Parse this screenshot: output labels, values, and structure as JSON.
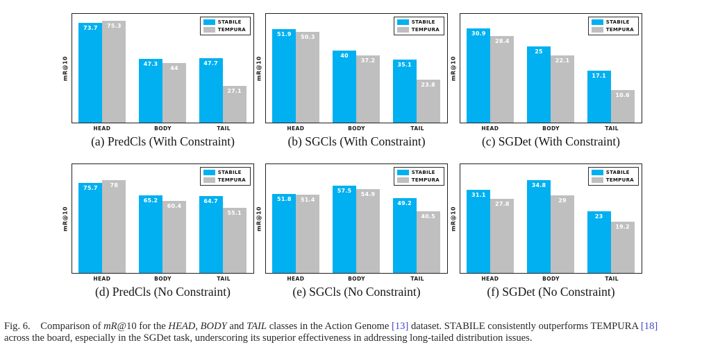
{
  "figure": {
    "ylabel": "mR@10",
    "categories": [
      "HEAD",
      "BODY",
      "TAIL"
    ],
    "series_colors": {
      "STABILE": "#00B0F0",
      "TEMPURA": "#BFBFBF"
    },
    "legend": {
      "position": "top-right",
      "items": [
        "STABILE",
        "TEMPURA"
      ]
    }
  },
  "chart_data": [
    {
      "type": "bar",
      "title": "(a) PredCls (With Constraint)",
      "categories": [
        "HEAD",
        "BODY",
        "TAIL"
      ],
      "series": [
        {
          "name": "STABILE",
          "values": [
            73.7,
            47.3,
            47.7
          ]
        },
        {
          "name": "TEMPURA",
          "values": [
            75.3,
            44,
            27.1
          ]
        }
      ],
      "xlabel": "",
      "ylabel": "mR@10",
      "ylim": [
        0,
        80
      ],
      "grid": false,
      "legend_position": "top-right"
    },
    {
      "type": "bar",
      "title": "(b) SGCls (With Constraint)",
      "categories": [
        "HEAD",
        "BODY",
        "TAIL"
      ],
      "series": [
        {
          "name": "STABILE",
          "values": [
            51.9,
            40,
            35.1
          ]
        },
        {
          "name": "TEMPURA",
          "values": [
            50.3,
            37.2,
            23.8
          ]
        }
      ],
      "xlabel": "",
      "ylabel": "mR@10",
      "ylim": [
        0,
        60
      ],
      "grid": false,
      "legend_position": "top-right"
    },
    {
      "type": "bar",
      "title": "(c) SGDet (With Constraint)",
      "categories": [
        "HEAD",
        "BODY",
        "TAIL"
      ],
      "series": [
        {
          "name": "STABILE",
          "values": [
            30.9,
            25,
            17.1
          ]
        },
        {
          "name": "TEMPURA",
          "values": [
            28.4,
            22.1,
            10.6
          ]
        }
      ],
      "xlabel": "",
      "ylabel": "mR@10",
      "ylim": [
        0,
        35.5
      ],
      "grid": false,
      "legend_position": "top-right"
    },
    {
      "type": "bar",
      "title": "(d) PredCls (No Constraint)",
      "categories": [
        "HEAD",
        "BODY",
        "TAIL"
      ],
      "series": [
        {
          "name": "STABILE",
          "values": [
            75.7,
            65.2,
            64.7
          ]
        },
        {
          "name": "TEMPURA",
          "values": [
            78,
            60.4,
            55.1
          ]
        }
      ],
      "xlabel": "",
      "ylabel": "mR@10",
      "ylim": [
        0,
        91
      ],
      "grid": false,
      "legend_position": "top-right"
    },
    {
      "type": "bar",
      "title": "(e) SGCls (No Constraint)",
      "categories": [
        "HEAD",
        "BODY",
        "TAIL"
      ],
      "series": [
        {
          "name": "STABILE",
          "values": [
            51.8,
            57.5,
            49.2
          ]
        },
        {
          "name": "TEMPURA",
          "values": [
            51.4,
            54.9,
            40.5
          ]
        }
      ],
      "xlabel": "",
      "ylabel": "mR@10",
      "ylim": [
        0,
        71
      ],
      "grid": false,
      "legend_position": "top-right"
    },
    {
      "type": "bar",
      "title": "(f) SGDet (No Constraint)",
      "categories": [
        "HEAD",
        "BODY",
        "TAIL"
      ],
      "series": [
        {
          "name": "STABILE",
          "values": [
            31.1,
            34.8,
            23
          ]
        },
        {
          "name": "TEMPURA",
          "values": [
            27.8,
            29,
            19.2
          ]
        }
      ],
      "xlabel": "",
      "ylabel": "mR@10",
      "ylim": [
        0,
        40.5
      ],
      "grid": false,
      "legend_position": "top-right"
    }
  ],
  "caption": {
    "segments": [
      {
        "text": "Fig. 6.  Comparison of ",
        "style": "plain"
      },
      {
        "text": "mR",
        "style": "italic"
      },
      {
        "text": "@10 for the ",
        "style": "plain"
      },
      {
        "text": "HEAD",
        "style": "italic"
      },
      {
        "text": ", ",
        "style": "plain"
      },
      {
        "text": "BODY",
        "style": "italic"
      },
      {
        "text": " and ",
        "style": "plain"
      },
      {
        "text": "TAIL",
        "style": "italic"
      },
      {
        "text": " classes in the Action Genome ",
        "style": "plain"
      },
      {
        "text": "[13]",
        "style": "cite"
      },
      {
        "text": " dataset. STABILE consistently outperforms TEMPURA ",
        "style": "plain"
      },
      {
        "text": "[18]",
        "style": "cite"
      },
      {
        "text": "",
        "style": "break"
      },
      {
        "text": "across the board, especially in the SGDet task, underscoring its superior effectiveness in addressing long-tailed distribution issues.",
        "style": "plain"
      }
    ]
  }
}
